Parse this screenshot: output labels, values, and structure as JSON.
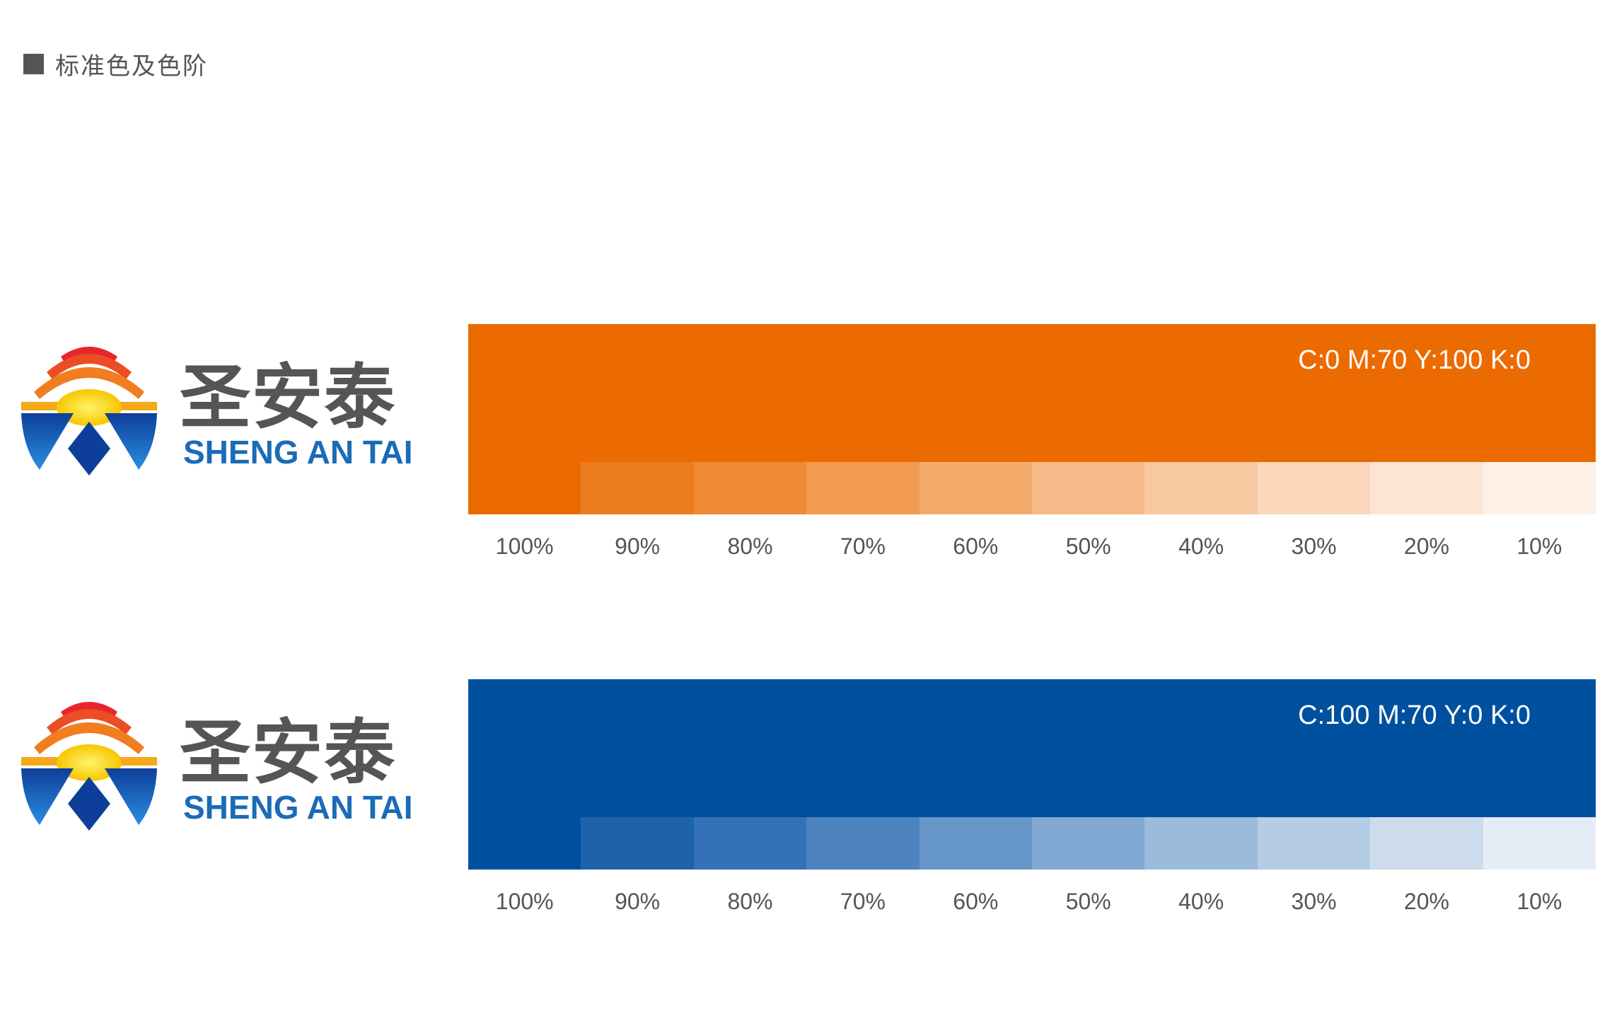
{
  "header": {
    "title": "标准色及色阶"
  },
  "logo": {
    "chinese_name": "圣安泰",
    "english_name": "SHENG AN TAI"
  },
  "orange": {
    "cmyk_label": "C:0 M:70 Y:100 K:0",
    "color": "#eb6b00",
    "steps": [
      "#eb6b00",
      "#ec7c1e",
      "#f08a35",
      "#f29b4f",
      "#f3ab6c",
      "#f5bb88",
      "#f8c9a0",
      "#fad6ba",
      "#fce5d4",
      "#fef0e6"
    ],
    "percents": [
      "100%",
      "90%",
      "80%",
      "70%",
      "60%",
      "50%",
      "40%",
      "30%",
      "20%",
      "10%"
    ]
  },
  "blue": {
    "cmyk_label": "C:100 M:70 Y:0 K:0",
    "color": "#0050a0",
    "steps": [
      "#0050a0",
      "#1d62ab",
      "#3471b6",
      "#4d83bf",
      "#6797c9",
      "#81a9d3",
      "#9bbbdc",
      "#b4cde5",
      "#cddced",
      "#e4ecf5"
    ],
    "percents": [
      "100%",
      "90%",
      "80%",
      "70%",
      "60%",
      "50%",
      "40%",
      "30%",
      "20%",
      "10%"
    ]
  }
}
